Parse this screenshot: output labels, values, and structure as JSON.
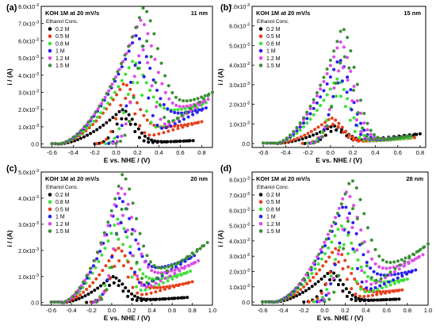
{
  "figure": {
    "panels": [
      "(a)",
      "(b)",
      "(c)",
      "(d)"
    ]
  },
  "colors": {
    "0.2 M": "#000000",
    "0.5 M": "#e8401c",
    "0.8 M": "#3fe03a",
    "1 M": "#2a1ff0",
    "1.2 M": "#e04ae8",
    "1.5 M": "#3b8f35"
  },
  "chart_data": [
    {
      "panel": "(a)",
      "type": "scatter",
      "title": "KOH 1M at 20 mV/s",
      "size_label": "11 nm",
      "legend_title": "Ethanol Conc.",
      "legend_position": "top-left",
      "xlabel": "E vs. NHE / (V)",
      "ylabel": "i / (A)",
      "xlim": [
        -0.7,
        0.9
      ],
      "ylim": [
        -0.0002,
        0.008
      ],
      "xticks": [
        "-0.6",
        "-0.4",
        "-0.2",
        "0.0",
        "0.2",
        "0.4",
        "0.6",
        "0.8"
      ],
      "yticks": [
        "0.0",
        "1.0x10-3",
        "2.0x10-3",
        "3.0x10-3",
        "4.0x10-3",
        "5.0x10-3",
        "6.0x10-3",
        "7.0x10-3",
        "8.0x10-3"
      ],
      "series": [
        {
          "name": "0.2 M",
          "onset": -0.55,
          "peak_x": 0.05,
          "peak_y": 0.002,
          "width": 0.25,
          "end_x": 0.72,
          "ret_min": 0.0001,
          "ret_end": 0.0002
        },
        {
          "name": "0.5 M",
          "onset": -0.55,
          "peak_x": 0.07,
          "peak_y": 0.0035,
          "width": 0.25,
          "end_x": 0.8,
          "ret_min": 0.0009,
          "ret_end": 0.0013
        },
        {
          "name": "0.8 M",
          "onset": -0.55,
          "peak_x": 0.15,
          "peak_y": 0.0048,
          "width": 0.27,
          "end_x": 0.84,
          "ret_min": 0.0018,
          "ret_end": 0.0024
        },
        {
          "name": "1 M",
          "onset": -0.55,
          "peak_x": 0.18,
          "peak_y": 0.0063,
          "width": 0.28,
          "end_x": 0.84,
          "ret_min": 0.0016,
          "ret_end": 0.0021
        },
        {
          "name": "1.2 M",
          "onset": -0.55,
          "peak_x": 0.22,
          "peak_y": 0.0072,
          "width": 0.28,
          "end_x": 0.86,
          "ret_min": 0.0019,
          "ret_end": 0.0026
        },
        {
          "name": "1.5 M",
          "onset": -0.55,
          "peak_x": 0.25,
          "peak_y": 0.0079,
          "width": 0.28,
          "end_x": 0.9,
          "ret_min": 0.0022,
          "ret_end": 0.003
        }
      ]
    },
    {
      "panel": "(b)",
      "type": "scatter",
      "title": "KOH 1M at 20 mV/s",
      "size_label": "15 nm",
      "legend_title": "Ethanol Conc.",
      "legend_position": "top-left",
      "xlabel": "E vs. NHE / (V)",
      "ylabel": "i / (A)",
      "xlim": [
        -0.7,
        0.85
      ],
      "ylim": [
        -0.0002,
        0.007
      ],
      "xticks": [
        "-0.6",
        "-0.4",
        "-0.2",
        "0.0",
        "0.2",
        "0.4",
        "0.6",
        "0.8"
      ],
      "yticks": [
        "0.0",
        "1.0x10-3",
        "2.0x10-3",
        "3.0x10-3",
        "4.0x10-3",
        "5.0x10-3",
        "6.0x10-3",
        "7.0x10-3"
      ],
      "series": [
        {
          "name": "0.2 M",
          "onset": -0.5,
          "peak_x": 0.02,
          "peak_y": 0.0009,
          "width": 0.24,
          "end_x": 0.8,
          "ret_min": 0.0001,
          "ret_end": 0.0005
        },
        {
          "name": "0.5 M",
          "onset": -0.5,
          "peak_x": 0.0,
          "peak_y": 0.0013,
          "width": 0.22,
          "end_x": 0.75,
          "ret_min": 0.0001,
          "ret_end": 0.0003
        },
        {
          "name": "0.8 M",
          "onset": -0.5,
          "peak_x": 0.05,
          "peak_y": 0.0033,
          "width": 0.24,
          "end_x": 0.72,
          "ret_min": 0.0001,
          "ret_end": 0.0003
        },
        {
          "name": "1 M",
          "onset": -0.5,
          "peak_x": 0.07,
          "peak_y": 0.0043,
          "width": 0.24,
          "end_x": 0.72,
          "ret_min": 0.0001,
          "ret_end": 0.0004
        },
        {
          "name": "1.2 M",
          "onset": -0.5,
          "peak_x": 0.08,
          "peak_y": 0.0052,
          "width": 0.25,
          "end_x": 0.72,
          "ret_min": 0.0001,
          "ret_end": 0.0004
        },
        {
          "name": "1.5 M",
          "onset": -0.5,
          "peak_x": 0.1,
          "peak_y": 0.0059,
          "width": 0.25,
          "end_x": 0.72,
          "ret_min": 0.0001,
          "ret_end": 0.0004
        }
      ]
    },
    {
      "panel": "(c)",
      "type": "scatter",
      "title": "KOH 1M at 20 mV/s",
      "size_label": "20 nm",
      "legend_title": "Ethanol Conc.",
      "legend_position": "top-left",
      "xlabel": "E vs. NHE / (V)",
      "ylabel": "i / (A)",
      "xlim": [
        -0.7,
        1.0
      ],
      "ylim": [
        -0.0001,
        0.005
      ],
      "xticks": [
        "-0.6",
        "-0.4",
        "-0.2",
        "0.0",
        "0.2",
        "0.4",
        "0.6",
        "0.8",
        "1.0"
      ],
      "yticks": [
        "0.0",
        "1.0x10-3",
        "2.0x10-3",
        "3.0x10-3",
        "4.0x10-3",
        "5.0x10-3"
      ],
      "series": [
        {
          "name": "0.2 M",
          "onset": -0.5,
          "peak_x": 0.0,
          "peak_y": 0.001,
          "width": 0.25,
          "end_x": 0.75,
          "ret_min": 0.0001,
          "ret_end": 0.0002
        },
        {
          "name": "0.8 M",
          "onset": -0.5,
          "peak_x": 0.05,
          "peak_y": 0.0032,
          "width": 0.26,
          "end_x": 0.78,
          "ret_min": 0.0008,
          "ret_end": 0.0012
        },
        {
          "name": "0.5 M",
          "onset": -0.5,
          "peak_x": 0.05,
          "peak_y": 0.0021,
          "width": 0.26,
          "end_x": 0.8,
          "ret_min": 0.0005,
          "ret_end": 0.0008
        },
        {
          "name": "1 M",
          "onset": -0.5,
          "peak_x": 0.07,
          "peak_y": 0.004,
          "width": 0.27,
          "end_x": 0.82,
          "ret_min": 0.0012,
          "ret_end": 0.0018
        },
        {
          "name": "1.2 M",
          "onset": -0.5,
          "peak_x": 0.08,
          "peak_y": 0.0044,
          "width": 0.27,
          "end_x": 0.86,
          "ret_min": 0.001,
          "ret_end": 0.0016
        },
        {
          "name": "1.5 M",
          "onset": -0.5,
          "peak_x": 0.1,
          "peak_y": 0.0049,
          "width": 0.28,
          "end_x": 0.95,
          "ret_min": 0.0011,
          "ret_end": 0.0023
        }
      ]
    },
    {
      "panel": "(d)",
      "type": "scatter",
      "title": "KOH 1M at 20 mV/s",
      "size_label": "28 nm",
      "legend_title": "Ethanol Conc.",
      "legend_position": "top-left",
      "xlabel": "E vs. NHE / (V)",
      "ylabel": "i / (A)",
      "xlim": [
        -0.7,
        1.0
      ],
      "ylim": [
        -0.0002,
        0.0085
      ],
      "xticks": [
        "-0.6",
        "-0.4",
        "-0.2",
        "0.0",
        "0.2",
        "0.4",
        "0.6",
        "0.8",
        "1.0"
      ],
      "yticks": [
        "0.0",
        "1.0x10-3",
        "2.0x10-3",
        "3.0x10-3",
        "4.0x10-3",
        "5.0x10-3",
        "6.0x10-3",
        "7.0x10-3",
        "8.0x10-3"
      ],
      "series": [
        {
          "name": "0.2 M",
          "onset": -0.5,
          "peak_x": 0.05,
          "peak_y": 0.002,
          "width": 0.25,
          "end_x": 0.72,
          "ret_min": 0.0001,
          "ret_end": 0.0002
        },
        {
          "name": "0.5 M",
          "onset": -0.5,
          "peak_x": 0.1,
          "peak_y": 0.0035,
          "width": 0.26,
          "end_x": 0.75,
          "ret_min": 0.0006,
          "ret_end": 0.0008
        },
        {
          "name": "0.8 M",
          "onset": -0.5,
          "peak_x": 0.15,
          "peak_y": 0.005,
          "width": 0.27,
          "end_x": 0.8,
          "ret_min": 0.0012,
          "ret_end": 0.0015
        },
        {
          "name": "1 M",
          "onset": -0.5,
          "peak_x": 0.18,
          "peak_y": 0.0063,
          "width": 0.27,
          "end_x": 0.88,
          "ret_min": 0.0016,
          "ret_end": 0.0021
        },
        {
          "name": "1.2 M",
          "onset": -0.5,
          "peak_x": 0.2,
          "peak_y": 0.0072,
          "width": 0.28,
          "end_x": 0.95,
          "ret_min": 0.0019,
          "ret_end": 0.0031
        },
        {
          "name": "1.5 M",
          "onset": -0.5,
          "peak_x": 0.25,
          "peak_y": 0.008,
          "width": 0.28,
          "end_x": 1.0,
          "ret_min": 0.0022,
          "ret_end": 0.0038
        }
      ]
    }
  ]
}
